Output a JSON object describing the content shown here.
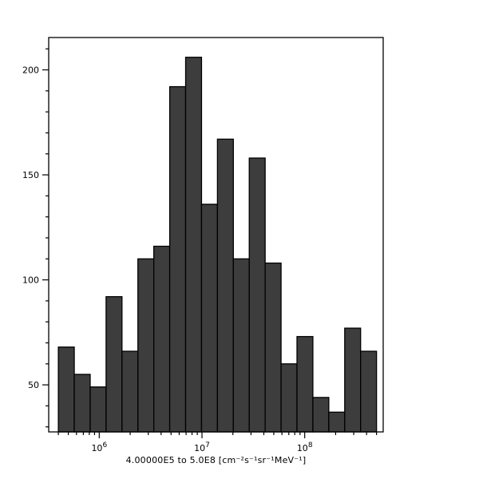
{
  "chart_data": {
    "type": "bar",
    "subtype": "histogram",
    "title": "",
    "xlabel": "4.00000E5 to 5.0E8 [cm⁻²s⁻¹sr⁻¹MeV⁻¹]",
    "ylabel": "",
    "x_scale": "log10",
    "grid": false,
    "legend": null,
    "bins": {
      "min": 400000,
      "max": 500000000,
      "count": 20
    },
    "values": [
      68,
      55,
      49,
      92,
      66,
      110,
      116,
      192,
      206,
      136,
      167,
      110,
      158,
      108,
      60,
      73,
      44,
      37,
      77,
      66
    ],
    "x_major_ticks": [
      {
        "value": 1000000,
        "base": "10",
        "exp": "6"
      },
      {
        "value": 10000000,
        "base": "10",
        "exp": "7"
      },
      {
        "value": 100000000,
        "base": "10",
        "exp": "8"
      }
    ],
    "x_minor_tick_range": [
      400000,
      500000000
    ],
    "y_major_ticks": [
      50,
      100,
      150,
      200
    ],
    "y_minor_step": 10,
    "x_range_log10": [
      5.508,
      8.764
    ],
    "y_range": [
      27.6,
      215.4
    ],
    "colors": {
      "bar_fill": "#3d3d3d",
      "bar_stroke": "#000000",
      "axis": "#000000",
      "text": "#000000",
      "background": "#ffffff"
    }
  }
}
